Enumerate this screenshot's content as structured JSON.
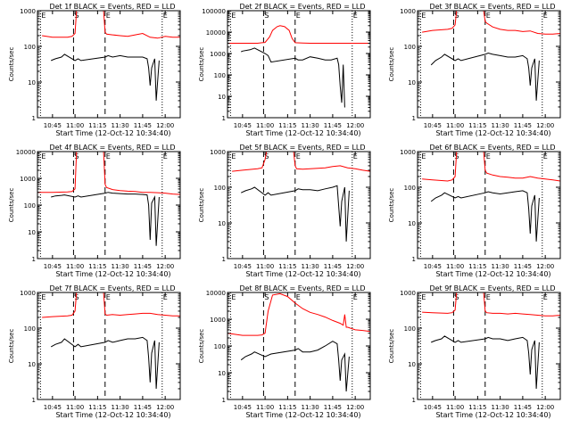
{
  "common": {
    "xlabel": "Start Time (12-Oct-12 10:34:40)",
    "ylabel": "Counts/sec",
    "x_ticks": [
      "10:45",
      "11:00",
      "11:15",
      "11:30",
      "11:45",
      "12:00"
    ],
    "x_tick_minutes": [
      45,
      60,
      75,
      90,
      105,
      120
    ],
    "x_range_minutes": [
      35,
      130
    ],
    "markers": [
      {
        "label": "E",
        "minute": 37,
        "style": "dotted"
      },
      {
        "label": "S",
        "minute": 59,
        "style": "dashed"
      },
      {
        "label": "E",
        "minute": 80,
        "style": "dashed"
      },
      {
        "label": "E",
        "minute": 118,
        "style": "dotted"
      }
    ],
    "colors": {
      "events": "#000000",
      "lld": "#ff0000"
    }
  },
  "chart_data": [
    {
      "type": "line",
      "title": "Det 1f BLACK = Events, RED = LLD",
      "y_scale": "log",
      "ylim": [
        1,
        1000
      ],
      "y_ticks": [
        "1",
        "10",
        "100",
        "1000"
      ],
      "series": [
        {
          "name": "Events",
          "x": [
            44,
            47,
            51,
            53,
            60,
            62,
            64,
            80,
            82,
            85,
            90,
            95,
            100,
            105,
            108,
            109,
            110,
            111,
            113,
            114,
            116
          ],
          "y": [
            40,
            45,
            50,
            60,
            40,
            45,
            40,
            50,
            55,
            50,
            55,
            50,
            50,
            50,
            45,
            25,
            8,
            25,
            45,
            3,
            40
          ]
        },
        {
          "name": "LLD",
          "x": [
            38,
            45,
            55,
            58,
            60,
            61,
            63,
            68,
            75,
            79,
            80,
            81,
            85,
            90,
            95,
            100,
            105,
            110,
            115,
            120,
            125,
            130
          ],
          "y": [
            200,
            180,
            180,
            190,
            230,
            1000,
            1000,
            1000,
            1000,
            1000,
            250,
            220,
            210,
            200,
            190,
            210,
            230,
            180,
            170,
            190,
            180,
            180
          ]
        }
      ]
    },
    {
      "type": "line",
      "title": "Det 2f BLACK = Events, RED = LLD",
      "y_scale": "log",
      "ylim": [
        1,
        100000
      ],
      "y_ticks": [
        "1",
        "10",
        "100",
        "1000",
        "10000",
        "100000"
      ],
      "series": [
        {
          "name": "Events",
          "x": [
            44,
            45,
            50,
            53,
            60,
            62,
            64,
            80,
            82,
            85,
            90,
            95,
            100,
            104,
            108,
            109,
            110,
            111,
            112,
            113
          ],
          "y": [
            1200,
            1300,
            1500,
            1800,
            1000,
            800,
            400,
            600,
            500,
            500,
            700,
            600,
            500,
            500,
            600,
            300,
            30,
            5,
            300,
            3
          ]
        },
        {
          "name": "LLD",
          "x": [
            35,
            45,
            55,
            58,
            60,
            63,
            65,
            68,
            70,
            73,
            76,
            78,
            80,
            85,
            90,
            95,
            100,
            105,
            110,
            115,
            120,
            125,
            130
          ],
          "y": [
            3000,
            3000,
            3000,
            3200,
            3300,
            6000,
            12000,
            18000,
            20000,
            18000,
            12000,
            5000,
            3200,
            3100,
            3000,
            3000,
            3000,
            3000,
            3000,
            3000,
            3000,
            3000,
            3000
          ]
        }
      ]
    },
    {
      "type": "line",
      "title": "Det 3f BLACK = Events, RED = LLD",
      "y_scale": "log",
      "ylim": [
        1,
        1000
      ],
      "y_ticks": [
        "1",
        "10",
        "100",
        "1000"
      ],
      "series": [
        {
          "name": "Events",
          "x": [
            44,
            47,
            51,
            53,
            60,
            62,
            64,
            80,
            82,
            85,
            90,
            95,
            100,
            105,
            108,
            109,
            110,
            111,
            113,
            114,
            116
          ],
          "y": [
            30,
            40,
            50,
            60,
            40,
            45,
            40,
            60,
            65,
            60,
            55,
            50,
            50,
            55,
            45,
            25,
            8,
            25,
            45,
            3,
            40
          ]
        },
        {
          "name": "LLD",
          "x": [
            38,
            45,
            55,
            58,
            60,
            61,
            63,
            68,
            75,
            79,
            80,
            81,
            85,
            90,
            95,
            100,
            105,
            110,
            115,
            120,
            125,
            130
          ],
          "y": [
            250,
            280,
            300,
            320,
            400,
            1000,
            1000,
            1000,
            1000,
            1000,
            500,
            450,
            350,
            300,
            280,
            280,
            260,
            270,
            230,
            220,
            220,
            230
          ]
        }
      ]
    },
    {
      "type": "line",
      "title": "Det 4f BLACK = Events, RED = LLD",
      "y_scale": "log",
      "ylim": [
        1,
        10000
      ],
      "y_ticks": [
        "1",
        "10",
        "100",
        "1000",
        "10000"
      ],
      "series": [
        {
          "name": "Events",
          "x": [
            44,
            47,
            51,
            53,
            60,
            62,
            64,
            80,
            82,
            85,
            90,
            95,
            100,
            105,
            108,
            109,
            110,
            111,
            113,
            114,
            116
          ],
          "y": [
            200,
            220,
            230,
            240,
            200,
            220,
            200,
            280,
            300,
            280,
            270,
            260,
            260,
            250,
            240,
            100,
            5,
            120,
            200,
            3,
            200
          ]
        },
        {
          "name": "LLD",
          "x": [
            35,
            45,
            55,
            58,
            60,
            61,
            63,
            68,
            75,
            79,
            80,
            81,
            85,
            90,
            95,
            100,
            105,
            110,
            115,
            120,
            125,
            130
          ],
          "y": [
            300,
            300,
            310,
            320,
            400,
            10000,
            10000,
            10000,
            10000,
            10000,
            600,
            450,
            380,
            350,
            330,
            320,
            300,
            300,
            290,
            280,
            260,
            250
          ]
        }
      ]
    },
    {
      "type": "line",
      "title": "Det 5f BLACK = Events, RED = LLD",
      "y_scale": "log",
      "ylim": [
        1,
        1000
      ],
      "y_ticks": [
        "1",
        "10",
        "100",
        "1000"
      ],
      "series": [
        {
          "name": "Events",
          "x": [
            44,
            47,
            51,
            53,
            60,
            62,
            64,
            80,
            82,
            85,
            90,
            95,
            100,
            105,
            108,
            109,
            110,
            111,
            113,
            114,
            116
          ],
          "y": [
            70,
            80,
            90,
            100,
            60,
            70,
            60,
            80,
            90,
            85,
            85,
            80,
            90,
            100,
            110,
            30,
            8,
            40,
            100,
            3,
            80
          ]
        },
        {
          "name": "LLD",
          "x": [
            38,
            45,
            55,
            58,
            60,
            61,
            63,
            68,
            75,
            79,
            80,
            81,
            85,
            90,
            95,
            100,
            105,
            110,
            115,
            120,
            125,
            130
          ],
          "y": [
            280,
            300,
            330,
            350,
            600,
            1000,
            1000,
            1000,
            1000,
            1000,
            400,
            330,
            320,
            330,
            340,
            350,
            380,
            400,
            350,
            330,
            300,
            280
          ]
        }
      ]
    },
    {
      "type": "line",
      "title": "Det 6f BLACK = Events, RED = LLD",
      "y_scale": "log",
      "ylim": [
        1,
        1000
      ],
      "y_ticks": [
        "1",
        "10",
        "100",
        "1000"
      ],
      "series": [
        {
          "name": "Events",
          "x": [
            44,
            47,
            51,
            53,
            60,
            62,
            64,
            80,
            82,
            85,
            90,
            95,
            100,
            105,
            108,
            109,
            110,
            111,
            113,
            114,
            116
          ],
          "y": [
            40,
            50,
            60,
            70,
            50,
            55,
            50,
            70,
            75,
            70,
            65,
            70,
            75,
            80,
            70,
            25,
            5,
            30,
            60,
            3,
            50
          ]
        },
        {
          "name": "LLD",
          "x": [
            38,
            45,
            55,
            58,
            60,
            61,
            63,
            68,
            75,
            79,
            80,
            81,
            85,
            90,
            95,
            100,
            105,
            110,
            115,
            120,
            125,
            130
          ],
          "y": [
            170,
            160,
            150,
            160,
            200,
            1000,
            1000,
            1000,
            1000,
            1000,
            300,
            250,
            220,
            200,
            190,
            180,
            180,
            200,
            180,
            170,
            160,
            150
          ]
        }
      ]
    },
    {
      "type": "line",
      "title": "Det 7f BLACK = Events, RED = LLD",
      "y_scale": "log",
      "ylim": [
        1,
        1000
      ],
      "y_ticks": [
        "1",
        "10",
        "100",
        "1000"
      ],
      "series": [
        {
          "name": "Events",
          "x": [
            44,
            47,
            51,
            53,
            60,
            62,
            64,
            80,
            82,
            85,
            90,
            95,
            100,
            105,
            108,
            109,
            110,
            111,
            113,
            114,
            116
          ],
          "y": [
            30,
            35,
            40,
            50,
            30,
            35,
            30,
            40,
            45,
            40,
            45,
            50,
            50,
            55,
            45,
            15,
            3,
            20,
            45,
            2,
            40
          ]
        },
        {
          "name": "LLD",
          "x": [
            38,
            45,
            55,
            58,
            60,
            61,
            63,
            68,
            75,
            79,
            80,
            81,
            85,
            90,
            95,
            100,
            105,
            110,
            115,
            120,
            125,
            130
          ],
          "y": [
            200,
            210,
            220,
            230,
            300,
            1000,
            1000,
            1000,
            1000,
            1000,
            250,
            230,
            240,
            230,
            240,
            250,
            260,
            260,
            240,
            230,
            220,
            220
          ]
        }
      ]
    },
    {
      "type": "line",
      "title": "Det 8f BLACK = Events, RED = LLD",
      "y_scale": "log",
      "ylim": [
        1,
        10000
      ],
      "y_ticks": [
        "1",
        "10",
        "100",
        "1000",
        "10000"
      ],
      "series": [
        {
          "name": "Events",
          "x": [
            44,
            47,
            51,
            53,
            60,
            62,
            64,
            80,
            82,
            85,
            90,
            95,
            100,
            105,
            108,
            109,
            110,
            111,
            113,
            114,
            116
          ],
          "y": [
            30,
            40,
            50,
            60,
            40,
            45,
            50,
            70,
            80,
            60,
            60,
            70,
            100,
            150,
            120,
            30,
            5,
            30,
            50,
            2,
            40
          ]
        },
        {
          "name": "LLD",
          "x": [
            35,
            45,
            55,
            58,
            60,
            62,
            65,
            70,
            75,
            80,
            85,
            90,
            95,
            100,
            105,
            110,
            112,
            113,
            114,
            115,
            120,
            125,
            130
          ],
          "y": [
            300,
            250,
            250,
            260,
            300,
            2000,
            8000,
            9000,
            7000,
            4000,
            2500,
            1800,
            1500,
            1200,
            900,
            700,
            600,
            1500,
            500,
            500,
            400,
            380,
            350
          ]
        }
      ]
    },
    {
      "type": "line",
      "title": "Det 9f BLACK = Events, RED = LLD",
      "y_scale": "log",
      "ylim": [
        1,
        1000
      ],
      "y_ticks": [
        "1",
        "10",
        "100",
        "1000"
      ],
      "series": [
        {
          "name": "Events",
          "x": [
            44,
            47,
            51,
            53,
            60,
            62,
            64,
            80,
            82,
            85,
            90,
            95,
            100,
            105,
            108,
            109,
            110,
            111,
            113,
            114,
            116
          ],
          "y": [
            40,
            45,
            50,
            60,
            40,
            45,
            40,
            50,
            55,
            50,
            50,
            45,
            50,
            55,
            45,
            20,
            5,
            25,
            45,
            2,
            40
          ]
        },
        {
          "name": "LLD",
          "x": [
            38,
            45,
            55,
            58,
            60,
            61,
            63,
            68,
            75,
            79,
            80,
            81,
            85,
            90,
            95,
            100,
            105,
            110,
            115,
            120,
            125,
            130
          ],
          "y": [
            280,
            270,
            260,
            270,
            320,
            1000,
            1000,
            1000,
            1000,
            1000,
            300,
            270,
            260,
            260,
            250,
            260,
            250,
            240,
            230,
            220,
            220,
            230
          ]
        }
      ]
    }
  ]
}
